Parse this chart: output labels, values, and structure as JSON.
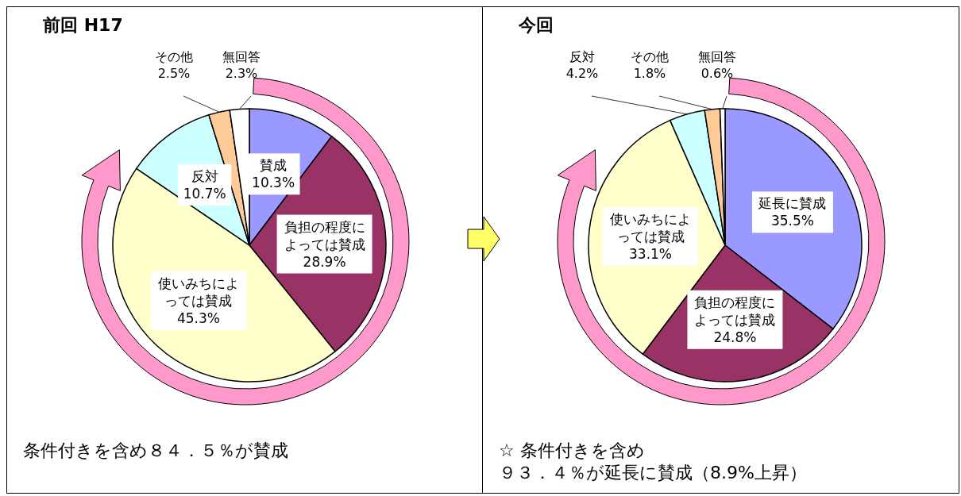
{
  "chart_data": [
    {
      "type": "pie",
      "title": "前回 H17",
      "categories": [
        "賛成",
        "負担の程度によっては賛成",
        "使いみちによっては賛成",
        "反対",
        "その他",
        "無回答"
      ],
      "values": [
        10.3,
        28.9,
        45.3,
        10.7,
        2.5,
        2.3
      ],
      "value_labels": [
        "10.3%",
        "28.9%",
        "45.3%",
        "10.7%",
        "2.5%",
        "2.3%"
      ],
      "colors": [
        "#9999ff",
        "#993366",
        "#ffffcc",
        "#ccffff",
        "#ffcc99",
        "#ffffff"
      ],
      "annotations": [
        "条件付きを含め８４．５％が賛成"
      ],
      "legend": false
    },
    {
      "type": "pie",
      "title": "今回",
      "categories": [
        "延長に賛成",
        "負担の程度によっては賛成",
        "使いみちによっては賛成",
        "反対",
        "その他",
        "無回答"
      ],
      "values": [
        35.5,
        24.8,
        33.1,
        4.2,
        1.8,
        0.6
      ],
      "value_labels": [
        "35.5%",
        "24.8%",
        "33.1%",
        "4.2%",
        "1.8%",
        "0.6%"
      ],
      "colors": [
        "#9999ff",
        "#993366",
        "#ffffcc",
        "#ccffff",
        "#ffcc99",
        "#ffffff"
      ],
      "annotations": [
        "☆ 条件付きを含め",
        "９３．４％が延長に賛成（8.9%上昇）"
      ],
      "legend": false
    }
  ]
}
